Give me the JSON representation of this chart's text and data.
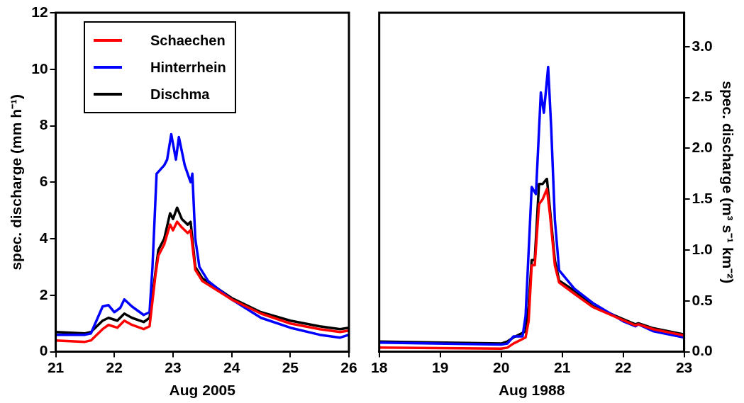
{
  "chart_data": [
    {
      "type": "line",
      "xlabel": "Aug 2005",
      "ylabel": "spec. discharge (mm h⁻¹)",
      "xlim": [
        21,
        26
      ],
      "xticks": [
        21,
        22,
        23,
        24,
        25,
        26
      ],
      "ylim": [
        0,
        12
      ],
      "yticks": [
        0,
        2,
        4,
        6,
        8,
        10,
        12
      ],
      "legend": "top left",
      "line_style": "solid",
      "series": [
        {
          "name": "Schaechen",
          "color": "#ff0000",
          "x": [
            21,
            21.5,
            21.6,
            21.8,
            21.9,
            22.05,
            22.17,
            22.3,
            22.5,
            22.6,
            22.7,
            22.75,
            22.85,
            22.95,
            23.0,
            23.07,
            23.15,
            23.25,
            23.3,
            23.38,
            23.5,
            24,
            24.5,
            25,
            25.5,
            25.85,
            26
          ],
          "values": [
            0.4,
            0.35,
            0.4,
            0.8,
            0.95,
            0.85,
            1.1,
            0.95,
            0.8,
            0.9,
            2.7,
            3.4,
            3.8,
            4.5,
            4.3,
            4.6,
            4.4,
            4.2,
            4.3,
            2.9,
            2.5,
            1.85,
            1.35,
            1.0,
            0.8,
            0.7,
            0.75
          ]
        },
        {
          "name": "Hinterrhein",
          "color": "#0000ff",
          "x": [
            21,
            21.5,
            21.6,
            21.8,
            21.9,
            22.0,
            22.1,
            22.17,
            22.3,
            22.5,
            22.6,
            22.65,
            22.72,
            22.85,
            22.9,
            22.97,
            23.05,
            23.1,
            23.2,
            23.3,
            23.33,
            23.38,
            23.45,
            23.6,
            24,
            24.5,
            25,
            25.5,
            25.85,
            26
          ],
          "values": [
            0.6,
            0.6,
            0.65,
            1.6,
            1.65,
            1.4,
            1.55,
            1.85,
            1.6,
            1.3,
            1.4,
            3.0,
            6.3,
            6.6,
            6.8,
            7.7,
            6.8,
            7.6,
            6.6,
            6.0,
            6.3,
            4.0,
            3.0,
            2.5,
            1.85,
            1.2,
            0.85,
            0.6,
            0.5,
            0.6
          ]
        },
        {
          "name": "Dischma",
          "color": "#000000",
          "x": [
            21,
            21.5,
            21.6,
            21.8,
            21.9,
            22.05,
            22.17,
            22.3,
            22.5,
            22.6,
            22.7,
            22.75,
            22.85,
            22.95,
            23.0,
            23.07,
            23.15,
            23.25,
            23.3,
            23.38,
            23.5,
            24,
            24.5,
            25,
            25.5,
            25.85,
            26
          ],
          "values": [
            0.7,
            0.65,
            0.7,
            1.1,
            1.2,
            1.1,
            1.35,
            1.2,
            1.05,
            1.2,
            2.8,
            3.6,
            4.0,
            4.9,
            4.7,
            5.1,
            4.7,
            4.5,
            4.6,
            3.0,
            2.6,
            1.9,
            1.4,
            1.1,
            0.9,
            0.8,
            0.85
          ]
        }
      ]
    },
    {
      "type": "line",
      "xlabel": "Aug 1988",
      "y2label": "spec. discharge (m³ s⁻¹ km⁻²)",
      "xlim": [
        18,
        23
      ],
      "xticks": [
        18,
        19,
        20,
        21,
        22,
        23
      ],
      "y2lim": [
        0,
        3.333
      ],
      "y2ticks": [
        {
          "value": 0,
          "label": "0.0"
        },
        {
          "value": 0.5,
          "label": "0.5"
        },
        {
          "value": 1,
          "label": "1.0"
        },
        {
          "value": 1.5,
          "label": "1.5"
        },
        {
          "value": 2,
          "label": "2.0"
        },
        {
          "value": 2.5,
          "label": "2.5"
        },
        {
          "value": 3,
          "label": "3.0"
        }
      ],
      "line_style": "solid",
      "series": [
        {
          "color": "#ff0000",
          "axis": "y2",
          "x": [
            18,
            20,
            20.1,
            20.2,
            20.4,
            20.45,
            20.5,
            20.55,
            20.62,
            20.68,
            20.75,
            20.8,
            20.88,
            20.95,
            21.2,
            21.5,
            22,
            22.2,
            22.25,
            22.5,
            23
          ],
          "values": [
            0.04,
            0.03,
            0.04,
            0.08,
            0.14,
            0.3,
            0.85,
            0.85,
            1.45,
            1.5,
            1.6,
            1.35,
            0.85,
            0.68,
            0.57,
            0.44,
            0.31,
            0.26,
            0.27,
            0.22,
            0.16
          ]
        },
        {
          "color": "#0000ff",
          "axis": "y2",
          "x": [
            18,
            20,
            20.1,
            20.2,
            20.35,
            20.4,
            20.5,
            20.57,
            20.65,
            20.7,
            20.77,
            20.82,
            20.88,
            20.95,
            21.2,
            21.5,
            22,
            22.2,
            22.25,
            22.5,
            23
          ],
          "values": [
            0.09,
            0.07,
            0.08,
            0.15,
            0.15,
            0.35,
            1.62,
            1.55,
            2.55,
            2.35,
            2.8,
            2.2,
            1.3,
            0.8,
            0.62,
            0.48,
            0.3,
            0.25,
            0.27,
            0.2,
            0.14
          ]
        },
        {
          "color": "#000000",
          "axis": "y2",
          "x": [
            18,
            20,
            20.1,
            20.2,
            20.4,
            20.45,
            20.5,
            20.55,
            20.62,
            20.68,
            20.75,
            20.8,
            20.88,
            20.95,
            21.2,
            21.5,
            22,
            22.2,
            22.25,
            22.5,
            23
          ],
          "values": [
            0.1,
            0.08,
            0.1,
            0.14,
            0.2,
            0.45,
            0.9,
            0.9,
            1.65,
            1.65,
            1.7,
            1.4,
            0.9,
            0.7,
            0.6,
            0.45,
            0.32,
            0.27,
            0.28,
            0.23,
            0.17
          ]
        }
      ]
    }
  ]
}
